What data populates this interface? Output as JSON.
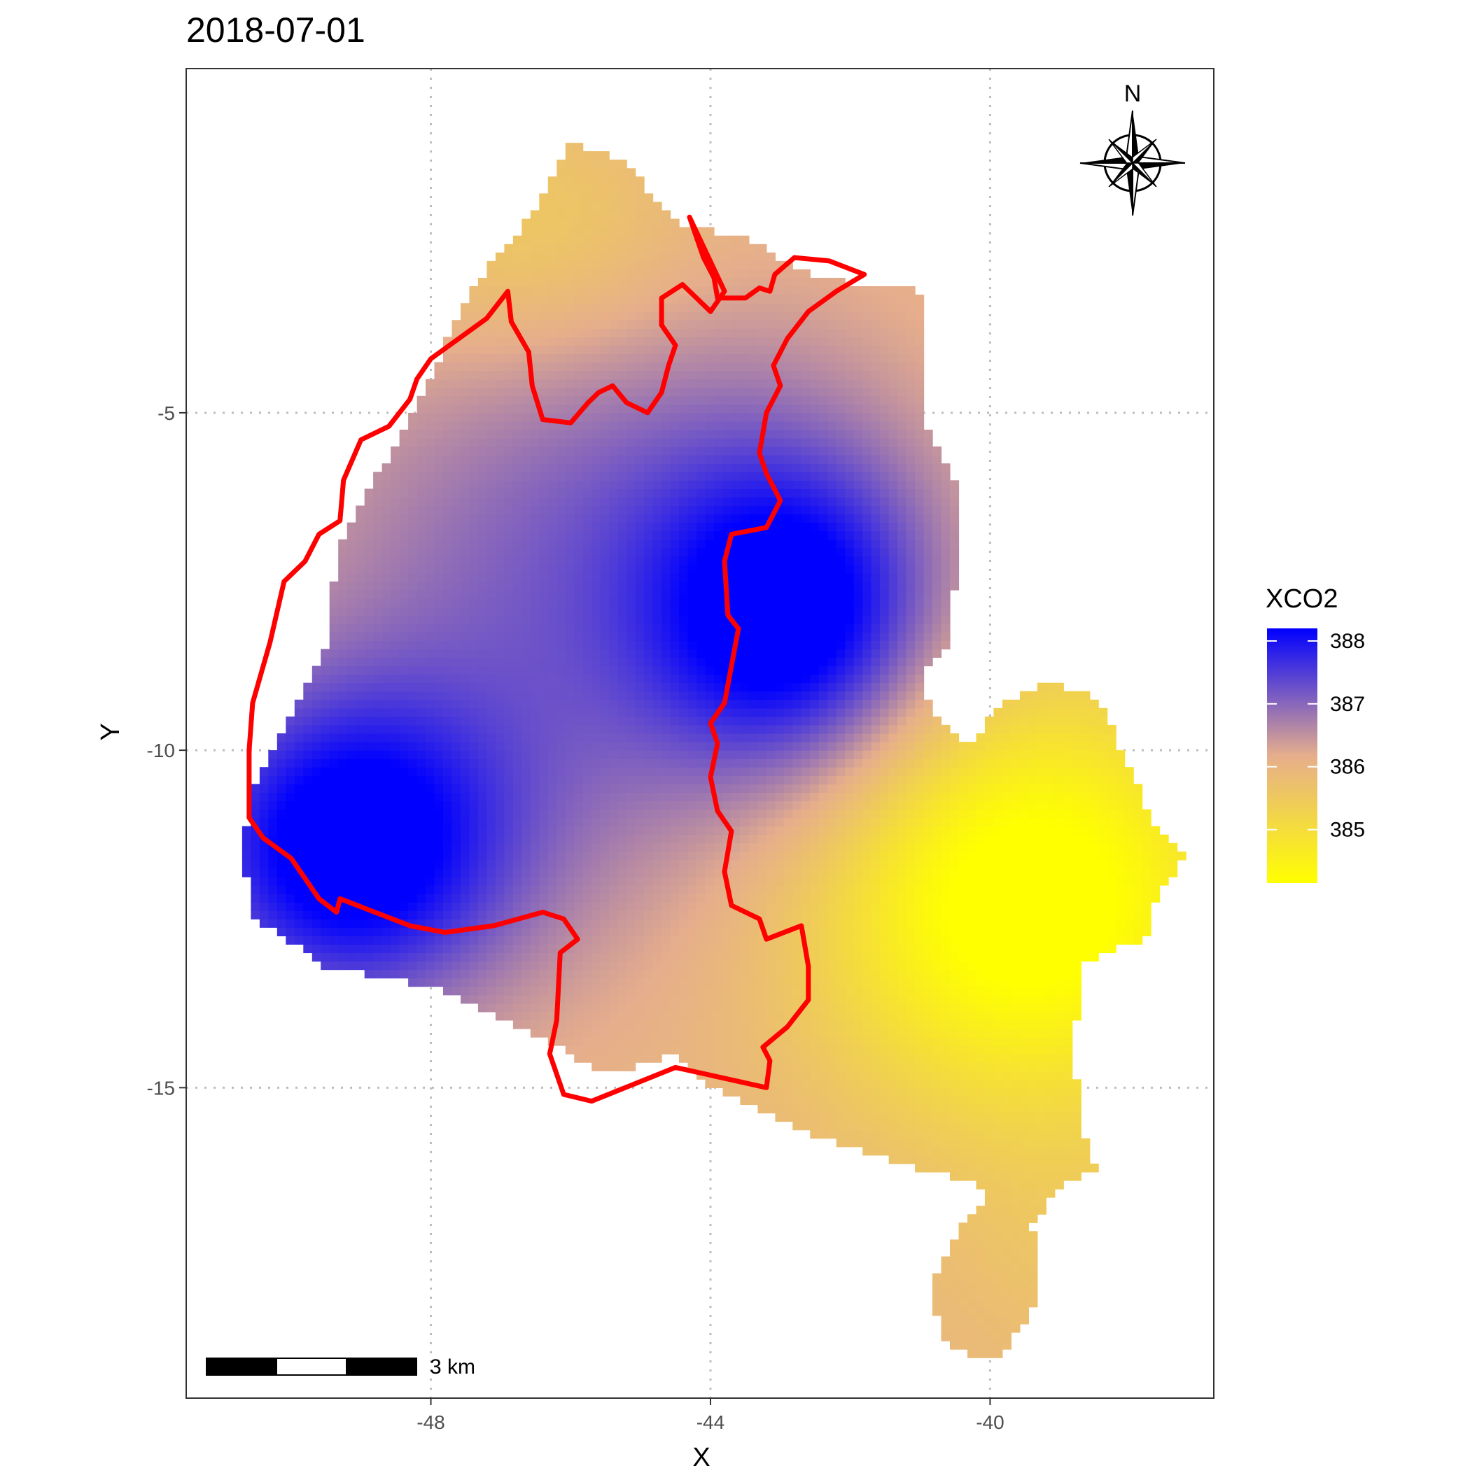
{
  "chart_data": {
    "type": "heatmap",
    "title": "2018-07-01",
    "xlabel": "X",
    "ylabel": "Y",
    "xlim": [
      -51.5,
      -36.8
    ],
    "ylim": [
      -19.6,
      0.1
    ],
    "x_ticks": [
      -48,
      -44,
      -40
    ],
    "y_ticks": [
      -5,
      -10,
      -15
    ],
    "grid": true,
    "legend": {
      "title": "XCO2",
      "position": "right",
      "range": [
        384.15,
        388.2
      ],
      "breaks": [
        388,
        387,
        386,
        385
      ],
      "colors": [
        "#ffff00",
        "#e6ae8c",
        "#0000ff"
      ]
    },
    "value_field": {
      "base": 386.0,
      "hotspots": [
        {
          "x": -49.2,
          "y": -11.5,
          "amp": 2.4,
          "sx": 1.6,
          "sy": 1.6
        },
        {
          "x": -42.8,
          "y": -8.0,
          "amp": 2.2,
          "sx": 1.4,
          "sy": 1.6
        },
        {
          "x": -46.0,
          "y": -8.5,
          "amp": 1.0,
          "sx": 3.0,
          "sy": 3.0
        },
        {
          "x": -44.5,
          "y": -5.5,
          "amp": 0.4,
          "sx": 2.5,
          "sy": 2.0
        },
        {
          "x": -39.5,
          "y": -12.2,
          "amp": -2.2,
          "sx": 2.2,
          "sy": 2.2
        },
        {
          "x": -46.5,
          "y": -2.5,
          "amp": -0.6,
          "sx": 1.6,
          "sy": 1.4
        },
        {
          "x": -38.5,
          "y": -17.5,
          "amp": -0.3,
          "sx": 1.5,
          "sy": 1.5
        }
      ]
    },
    "domain_outline": [
      [
        -46.0,
        -1.0
      ],
      [
        -45.2,
        -1.3
      ],
      [
        -44.5,
        -2.2
      ],
      [
        -43.5,
        -2.4
      ],
      [
        -42.5,
        -3.0
      ],
      [
        -41.0,
        -3.2
      ],
      [
        -41.0,
        -4.0
      ],
      [
        -40.9,
        -5.2
      ],
      [
        -40.5,
        -6.0
      ],
      [
        -40.4,
        -7.0
      ],
      [
        -40.5,
        -7.5
      ],
      [
        -40.6,
        -8.5
      ],
      [
        -41.0,
        -8.8
      ],
      [
        -40.8,
        -9.5
      ],
      [
        -40.3,
        -9.9
      ],
      [
        -39.8,
        -9.3
      ],
      [
        -39.2,
        -9.0
      ],
      [
        -38.5,
        -9.2
      ],
      [
        -38.2,
        -9.8
      ],
      [
        -38.0,
        -10.3
      ],
      [
        -37.6,
        -11.2
      ],
      [
        -37.2,
        -11.5
      ],
      [
        -37.6,
        -12.2
      ],
      [
        -37.8,
        -12.8
      ],
      [
        -38.3,
        -13.0
      ],
      [
        -38.7,
        -13.2
      ],
      [
        -38.8,
        -14.5
      ],
      [
        -38.7,
        -15.5
      ],
      [
        -38.5,
        -16.2
      ],
      [
        -39.0,
        -16.5
      ],
      [
        -39.4,
        -17.0
      ],
      [
        -39.3,
        -18.0
      ],
      [
        -39.5,
        -18.5
      ],
      [
        -39.9,
        -19.0
      ],
      [
        -40.6,
        -18.9
      ],
      [
        -40.9,
        -18.0
      ],
      [
        -40.5,
        -17.2
      ],
      [
        -40.0,
        -16.5
      ],
      [
        -41.0,
        -16.2
      ],
      [
        -42.0,
        -15.9
      ],
      [
        -43.0,
        -15.5
      ],
      [
        -44.0,
        -15.0
      ],
      [
        -44.5,
        -14.5
      ],
      [
        -45.5,
        -14.8
      ],
      [
        -46.5,
        -14.2
      ],
      [
        -48.0,
        -13.5
      ],
      [
        -49.5,
        -13.2
      ],
      [
        -50.5,
        -12.5
      ],
      [
        -50.7,
        -11.5
      ],
      [
        -50.5,
        -10.5
      ],
      [
        -50.0,
        -9.5
      ],
      [
        -49.5,
        -8.5
      ],
      [
        -49.5,
        -8.0
      ],
      [
        -49.3,
        -7.0
      ],
      [
        -49.0,
        -6.3
      ],
      [
        -48.5,
        -5.5
      ],
      [
        -47.7,
        -3.8
      ],
      [
        -47.3,
        -3.0
      ],
      [
        -46.5,
        -2.0
      ]
    ],
    "boundary": [
      [
        -44.3,
        -2.1
      ],
      [
        -44.1,
        -2.7
      ],
      [
        -43.95,
        -3.0
      ],
      [
        -43.9,
        -3.3
      ],
      [
        -43.5,
        -3.3
      ],
      [
        -43.3,
        -3.15
      ],
      [
        -43.15,
        -3.2
      ],
      [
        -43.08,
        -2.95
      ],
      [
        -42.8,
        -2.7
      ],
      [
        -42.3,
        -2.75
      ],
      [
        -41.8,
        -2.95
      ],
      [
        -42.2,
        -3.2
      ],
      [
        -42.6,
        -3.5
      ],
      [
        -42.9,
        -3.9
      ],
      [
        -43.1,
        -4.3
      ],
      [
        -43.0,
        -4.6
      ],
      [
        -43.2,
        -5.0
      ],
      [
        -43.3,
        -5.6
      ],
      [
        -43.2,
        -5.9
      ],
      [
        -43.0,
        -6.3
      ],
      [
        -43.2,
        -6.7
      ],
      [
        -43.7,
        -6.8
      ],
      [
        -43.8,
        -7.2
      ],
      [
        -43.75,
        -8.0
      ],
      [
        -43.6,
        -8.2
      ],
      [
        -43.8,
        -9.3
      ],
      [
        -44.0,
        -9.6
      ],
      [
        -43.9,
        -9.9
      ],
      [
        -44.0,
        -10.4
      ],
      [
        -43.9,
        -10.9
      ],
      [
        -43.7,
        -11.2
      ],
      [
        -43.8,
        -11.8
      ],
      [
        -43.7,
        -12.3
      ],
      [
        -43.3,
        -12.5
      ],
      [
        -43.2,
        -12.8
      ],
      [
        -42.7,
        -12.6
      ],
      [
        -42.6,
        -13.2
      ],
      [
        -42.6,
        -13.7
      ],
      [
        -42.9,
        -14.1
      ],
      [
        -43.25,
        -14.4
      ],
      [
        -43.15,
        -14.6
      ],
      [
        -43.2,
        -15.0
      ],
      [
        -44.5,
        -14.7
      ],
      [
        -45.7,
        -15.2
      ],
      [
        -46.1,
        -15.1
      ],
      [
        -46.3,
        -14.5
      ],
      [
        -46.2,
        -14.0
      ],
      [
        -46.15,
        -13.0
      ],
      [
        -45.9,
        -12.8
      ],
      [
        -46.1,
        -12.5
      ],
      [
        -46.4,
        -12.4
      ],
      [
        -47.1,
        -12.6
      ],
      [
        -47.8,
        -12.7
      ],
      [
        -48.3,
        -12.6
      ],
      [
        -48.8,
        -12.4
      ],
      [
        -49.3,
        -12.2
      ],
      [
        -49.35,
        -12.4
      ],
      [
        -49.6,
        -12.2
      ],
      [
        -50.0,
        -11.6
      ],
      [
        -50.4,
        -11.3
      ],
      [
        -50.6,
        -11.0
      ],
      [
        -50.6,
        -10.0
      ],
      [
        -50.55,
        -9.3
      ],
      [
        -50.3,
        -8.4
      ],
      [
        -50.1,
        -7.5
      ],
      [
        -49.8,
        -7.2
      ],
      [
        -49.6,
        -6.8
      ],
      [
        -49.3,
        -6.6
      ],
      [
        -49.25,
        -6.0
      ],
      [
        -49.0,
        -5.4
      ],
      [
        -48.6,
        -5.2
      ],
      [
        -48.3,
        -4.8
      ],
      [
        -48.2,
        -4.5
      ],
      [
        -48.0,
        -4.2
      ],
      [
        -47.6,
        -3.9
      ],
      [
        -47.2,
        -3.6
      ],
      [
        -46.9,
        -3.2
      ],
      [
        -46.85,
        -3.65
      ],
      [
        -46.6,
        -4.1
      ],
      [
        -46.55,
        -4.6
      ],
      [
        -46.4,
        -5.1
      ],
      [
        -46.0,
        -5.15
      ],
      [
        -45.75,
        -4.85
      ],
      [
        -45.6,
        -4.7
      ],
      [
        -45.4,
        -4.6
      ],
      [
        -45.2,
        -4.85
      ],
      [
        -44.9,
        -5.0
      ],
      [
        -44.7,
        -4.7
      ],
      [
        -44.6,
        -4.3
      ],
      [
        -44.5,
        -4.0
      ],
      [
        -44.7,
        -3.7
      ],
      [
        -44.7,
        -3.3
      ],
      [
        -44.4,
        -3.1
      ],
      [
        -44.2,
        -3.3
      ],
      [
        -44.0,
        -3.5
      ],
      [
        -43.8,
        -3.2
      ]
    ],
    "compass_label": "N",
    "scalebar_label": "3 km"
  }
}
